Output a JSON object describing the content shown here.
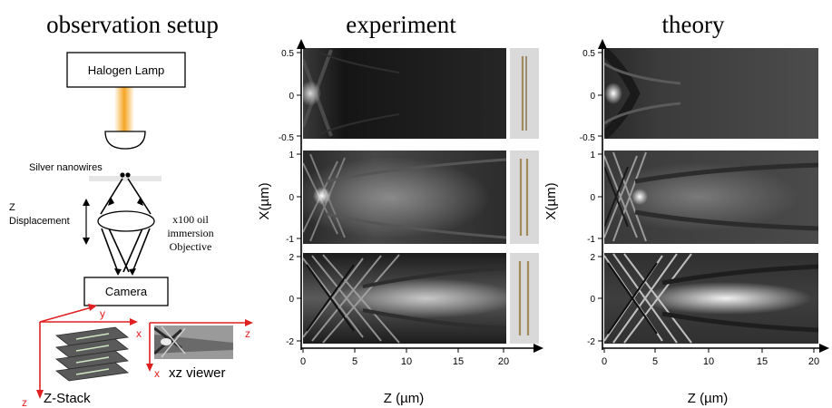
{
  "headings": {
    "setup": "observation setup",
    "experiment": "experiment",
    "theory": "theory"
  },
  "setup": {
    "lamp_label": "Halogen Lamp",
    "nanowires_label": "Silver nanowires",
    "z_displacement_line1": "Z",
    "z_displacement_line2": "Displacement",
    "objective_line1": "x100 oil",
    "objective_line2": "immersion",
    "objective_line3": "Objective",
    "camera_label": "Camera",
    "axis_y": "y",
    "axis_x": "x",
    "axis_z": "z",
    "zstack_label": "Z-Stack",
    "xz_axis_z": "z",
    "xz_axis_x": "x",
    "xz_viewer_label": "xz viewer"
  },
  "colors": {
    "axis_red": "#e02020",
    "lamp_beam": "#f5a623",
    "sample_plane": "#e6e6e6"
  },
  "panels": {
    "ylabel": "X(µm)",
    "xlabel": "Z (µm)",
    "rows": [
      {
        "y_ticks": [
          "0.5",
          "0",
          "-0.5"
        ]
      },
      {
        "y_ticks": [
          "1",
          "0",
          "-1"
        ]
      },
      {
        "y_ticks": [
          "2",
          "0",
          "-2"
        ]
      }
    ],
    "x_ticks": [
      "0",
      "5",
      "10",
      "15",
      "20"
    ]
  }
}
